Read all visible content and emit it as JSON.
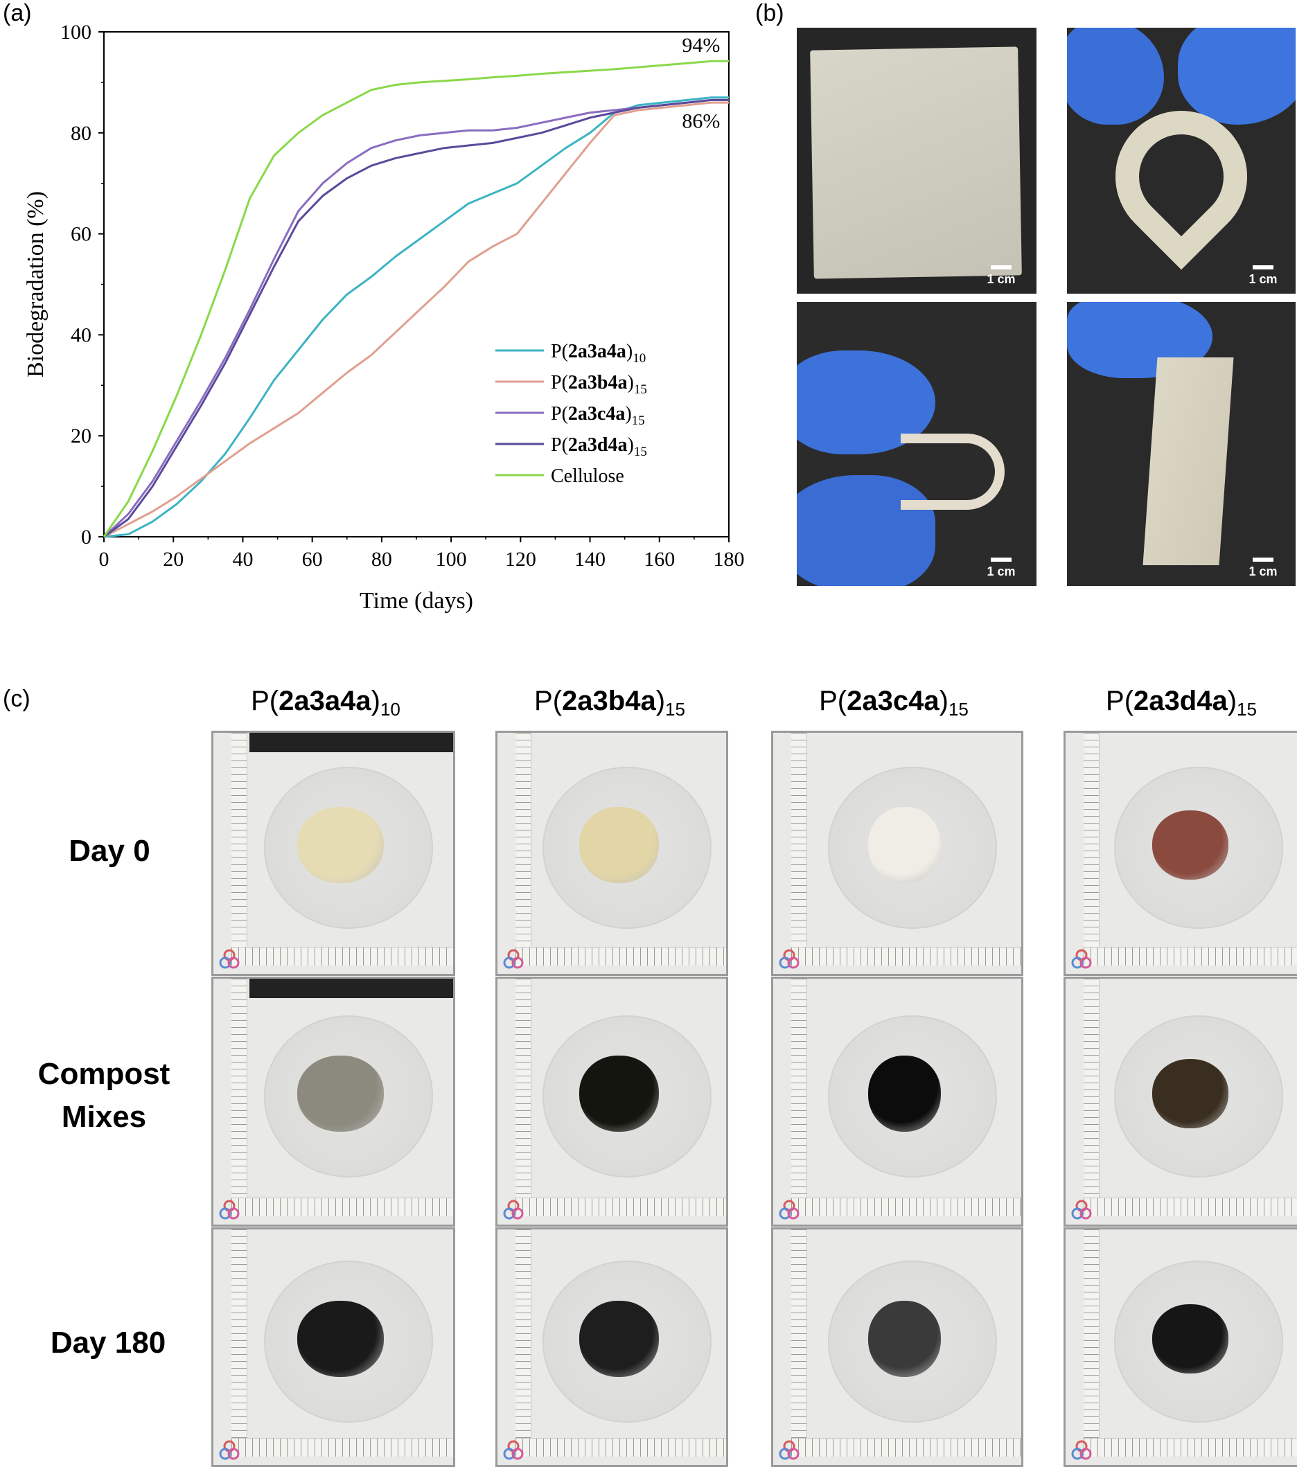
{
  "panel_labels": {
    "a": "(a)",
    "b": "(b)",
    "c": "(c)"
  },
  "chart_data": {
    "type": "line",
    "title": "",
    "xlabel": "Time (days)",
    "ylabel": "Biodegradation (%)",
    "xlim": [
      0,
      180
    ],
    "ylim": [
      0,
      100
    ],
    "xticks": [
      0,
      20,
      40,
      60,
      80,
      100,
      120,
      140,
      160,
      180
    ],
    "yticks": [
      0,
      20,
      40,
      60,
      80,
      100
    ],
    "grid": false,
    "legend_position": "lower-right",
    "annotations": [
      {
        "text": "94%",
        "x": 172,
        "y": 96
      },
      {
        "text": "86%",
        "x": 172,
        "y": 81
      }
    ],
    "series": [
      {
        "name": "P(2a3a4a)",
        "name_bold": "2a3a4a",
        "subscript": "10",
        "color": "#3cb4c4",
        "x": [
          0,
          7,
          14,
          21,
          28,
          35,
          42,
          49,
          56,
          63,
          70,
          77,
          84,
          91,
          98,
          105,
          112,
          119,
          126,
          133,
          140,
          147,
          154,
          161,
          168,
          175,
          180
        ],
        "y": [
          0,
          0.5,
          3,
          6.5,
          11,
          16.5,
          23.5,
          31,
          37,
          43,
          48,
          51.5,
          55.5,
          59,
          62.5,
          66,
          68,
          70,
          73.5,
          77,
          80,
          84,
          85.5,
          86,
          86.5,
          87,
          87
        ]
      },
      {
        "name": "P(2a3b4a)",
        "name_bold": "2a3b4a",
        "subscript": "15",
        "color": "#e0a090",
        "x": [
          0,
          7,
          14,
          21,
          28,
          35,
          42,
          49,
          56,
          63,
          70,
          77,
          84,
          91,
          98,
          105,
          112,
          119,
          126,
          133,
          140,
          147,
          154,
          161,
          168,
          175,
          180
        ],
        "y": [
          0,
          2.5,
          5,
          8,
          11.5,
          15,
          18.5,
          21.5,
          24.5,
          28.5,
          32.5,
          36,
          40.5,
          45,
          49.5,
          54.5,
          57.5,
          60,
          66,
          72,
          78,
          83.5,
          84.5,
          85,
          85.5,
          86,
          86
        ]
      },
      {
        "name": "P(2a3c4a)",
        "name_bold": "2a3c4a",
        "subscript": "15",
        "color": "#8a6cc0",
        "x": [
          0,
          7,
          14,
          21,
          28,
          35,
          42,
          49,
          56,
          63,
          70,
          77,
          84,
          91,
          98,
          105,
          112,
          119,
          126,
          133,
          140,
          147,
          154,
          161,
          168,
          175,
          180
        ],
        "y": [
          0,
          4.5,
          11,
          19,
          27,
          35.5,
          45,
          55,
          64.5,
          70,
          74,
          77,
          78.5,
          79.5,
          80,
          80.5,
          80.5,
          81,
          82,
          83,
          84,
          84.5,
          85,
          85.5,
          86,
          86.5,
          86.5
        ]
      },
      {
        "name": "P(2a3d4a)",
        "name_bold": "2a3d4a",
        "subscript": "15",
        "color": "#5a4a9a",
        "x": [
          0,
          7,
          14,
          21,
          28,
          35,
          42,
          49,
          56,
          63,
          70,
          77,
          84,
          91,
          98,
          105,
          112,
          119,
          126,
          133,
          140,
          147,
          154,
          161,
          168,
          175,
          180
        ],
        "y": [
          0,
          3.5,
          10,
          18,
          26,
          34.5,
          44,
          53.5,
          62.5,
          67.5,
          71,
          73.5,
          75,
          76,
          77,
          77.5,
          78,
          79,
          80,
          81.5,
          83,
          84,
          85,
          85.5,
          86,
          86.5,
          86.5
        ]
      },
      {
        "name": "Cellulose",
        "name_bold": "",
        "subscript": "",
        "color": "#8ad84a",
        "x": [
          0,
          7,
          14,
          21,
          28,
          35,
          42,
          49,
          56,
          63,
          70,
          77,
          84,
          91,
          98,
          105,
          112,
          119,
          126,
          133,
          140,
          147,
          154,
          161,
          168,
          175,
          180
        ],
        "y": [
          0,
          7,
          17,
          28,
          40,
          53,
          67,
          75.5,
          80,
          83.5,
          86,
          88.5,
          89.5,
          90,
          90.3,
          90.6,
          91,
          91.3,
          91.7,
          92,
          92.3,
          92.6,
          93,
          93.4,
          93.8,
          94.2,
          94.2
        ]
      }
    ]
  },
  "panel_b": {
    "scale_label": "1 cm",
    "photos": [
      {
        "name": "film-flat",
        "bg": "#262626",
        "scale": "1 cm"
      },
      {
        "name": "film-folded-loop",
        "bg": "#2a2a2a",
        "scale": "1 cm"
      },
      {
        "name": "film-bent-u",
        "bg": "#2b2b2b",
        "scale": "1 cm"
      },
      {
        "name": "film-hanging",
        "bg": "#2a2a2a",
        "scale": "1 cm"
      }
    ]
  },
  "panel_c": {
    "columns": [
      {
        "prefix": "P(",
        "bold": "2a3a4a",
        "suffix": ")",
        "sub": "10"
      },
      {
        "prefix": "P(",
        "bold": "2a3b4a",
        "suffix": ")",
        "sub": "15"
      },
      {
        "prefix": "P(",
        "bold": "2a3c4a",
        "suffix": ")",
        "sub": "15"
      },
      {
        "prefix": "P(",
        "bold": "2a3d4a",
        "suffix": ")",
        "sub": "15"
      }
    ],
    "rows": [
      {
        "label_line1": "Day 0",
        "label_line2": ""
      },
      {
        "label_line1": "Compost",
        "label_line2": "Mixes"
      },
      {
        "label_line1": "Day 180",
        "label_line2": ""
      }
    ],
    "sample_colors": [
      [
        "#e6dcb4",
        "#e2d6a6",
        "#f0ede6",
        "#8a4a3e"
      ],
      [
        "#8c8a7e",
        "#15150f",
        "#0c0c0c",
        "#3a2e20"
      ],
      [
        "#1a1a1a",
        "#1e1e1e",
        "#3a3a3a",
        "#161616"
      ]
    ]
  }
}
